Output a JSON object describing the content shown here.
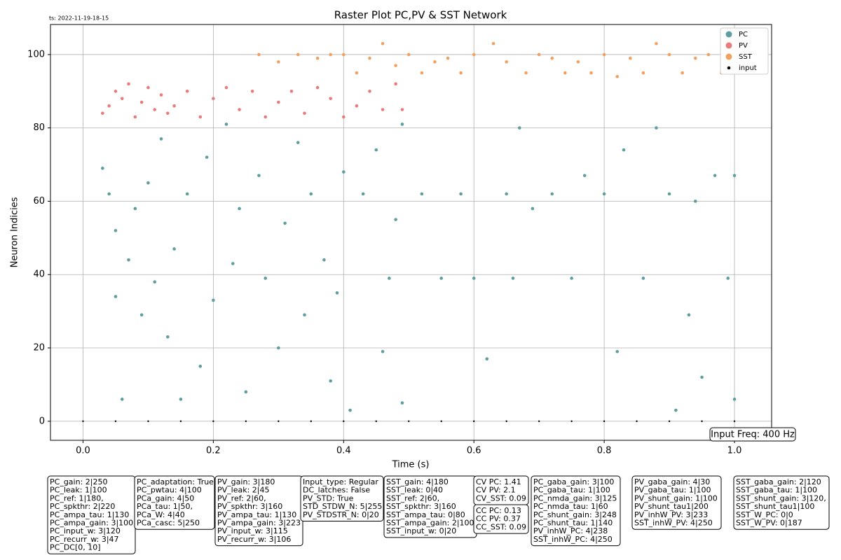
{
  "chart_data": {
    "type": "scatter",
    "title": "Raster Plot PC,PV & SST Network",
    "timestamp": "ts: 2022-11-19-18-15",
    "xlabel": "Time (s)",
    "ylabel": "Neuron Indicies",
    "annotation": "Input Freq: 400 Hz",
    "xlim": [
      -0.05,
      1.057
    ],
    "ylim": [
      -5.2,
      108.2
    ],
    "xticks": [
      {
        "value": 0,
        "label": "0.0"
      },
      0.2,
      0.4,
      0.6,
      0.8,
      {
        "value": 1,
        "label": "1.0"
      }
    ],
    "yticks": [
      0,
      20,
      40,
      60,
      80,
      100
    ],
    "grid": true,
    "legend": "upper right",
    "series": [
      {
        "name": "PC",
        "color": "#5f9ea0",
        "x": [
          0.03,
          0.04,
          0.05,
          0.05,
          0.06,
          0.07,
          0.08,
          0.09,
          0.1,
          0.11,
          0.12,
          0.13,
          0.14,
          0.15,
          0.16,
          0.18,
          0.19,
          0.2,
          0.22,
          0.23,
          0.24,
          0.25,
          0.27,
          0.28,
          0.3,
          0.31,
          0.33,
          0.34,
          0.35,
          0.37,
          0.38,
          0.39,
          0.4,
          0.41,
          0.43,
          0.45,
          0.46,
          0.47,
          0.48,
          0.49,
          0.49,
          0.52,
          0.55,
          0.58,
          0.6,
          0.62,
          0.65,
          0.66,
          0.67,
          0.69,
          0.72,
          0.75,
          0.77,
          0.8,
          0.82,
          0.83,
          0.86,
          0.88,
          0.9,
          0.91,
          0.93,
          0.94,
          0.95,
          0.97,
          0.99,
          1.0,
          1.0
        ],
        "values": [
          69,
          62,
          52,
          34,
          6,
          44,
          58,
          29,
          65,
          38,
          77,
          23,
          47,
          6,
          62,
          15,
          72,
          33,
          81,
          43,
          58,
          8,
          67,
          39,
          20,
          54,
          76,
          29,
          62,
          44,
          11,
          35,
          68,
          3,
          62,
          74,
          19,
          39,
          55,
          81,
          5,
          62,
          39,
          62,
          39,
          17,
          62,
          39,
          80,
          58,
          62,
          39,
          67,
          62,
          19,
          74,
          39,
          80,
          62,
          3,
          29,
          60,
          12,
          67,
          39,
          67,
          6
        ]
      },
      {
        "name": "PV",
        "color": "#e87b7b",
        "x": [
          0.03,
          0.04,
          0.05,
          0.06,
          0.07,
          0.08,
          0.09,
          0.1,
          0.11,
          0.12,
          0.13,
          0.14,
          0.16,
          0.18,
          0.2,
          0.22,
          0.24,
          0.26,
          0.28,
          0.3,
          0.32,
          0.34,
          0.36,
          0.38,
          0.4,
          0.42,
          0.44,
          0.46,
          0.48,
          0.49
        ],
        "values": [
          84,
          86,
          90,
          88,
          92,
          83,
          87,
          91,
          85,
          89,
          84,
          86,
          90,
          83,
          88,
          91,
          85,
          90,
          83,
          87,
          90,
          84,
          91,
          88,
          83,
          86,
          90,
          85,
          92,
          85
        ]
      },
      {
        "name": "SST",
        "color": "#f0a060",
        "x": [
          0.27,
          0.3,
          0.33,
          0.36,
          0.38,
          0.4,
          0.42,
          0.44,
          0.46,
          0.48,
          0.5,
          0.52,
          0.54,
          0.56,
          0.58,
          0.6,
          0.63,
          0.65,
          0.68,
          0.7,
          0.72,
          0.74,
          0.76,
          0.78,
          0.8,
          0.82,
          0.84,
          0.86,
          0.88,
          0.9,
          0.92,
          0.94,
          0.96,
          0.98,
          1.0
        ],
        "values": [
          100,
          98,
          100,
          99,
          100,
          100,
          95,
          99,
          103,
          97,
          100,
          95,
          98,
          99,
          95,
          100,
          103,
          98,
          95,
          100,
          99,
          95,
          98,
          95,
          100,
          94,
          99,
          95,
          103,
          100,
          95,
          99,
          100,
          95,
          100
        ]
      },
      {
        "name": "input",
        "color": "#000000",
        "x": [
          0,
          0.05,
          0.1,
          0.15,
          0.2,
          0.25,
          0.3,
          0.35,
          0.4,
          0.45,
          0.5,
          0.55,
          0.6,
          0.65,
          0.7,
          0.75,
          0.8,
          0.85,
          0.9,
          0.95,
          1.0
        ],
        "values": [
          0,
          0,
          0,
          0,
          0,
          0,
          0,
          0,
          0,
          0,
          0,
          0,
          0,
          0,
          0,
          0,
          0,
          0,
          0,
          0,
          0
        ]
      }
    ],
    "param_boxes": [
      [
        "PC_gain: 2|250",
        "PC_leak: 1|100",
        "PC_ref: 1|180,",
        "PC_spkthr: 2|220",
        "PC_ampa_tau: 1|130",
        "PC_ampa_gain: 3|100",
        "PC_input_w: 3|120",
        "PC_recurr_w: 3|47",
        "PC_DC[0, 10]"
      ],
      [
        "PC_adaptation: True",
        "PC_pwtau: 4|100",
        "PCa_gain: 4|50",
        "PCa_tau: 1|50,",
        "PCa_W: 4|40",
        "PCa_casc: 5|250"
      ],
      [
        "PV_gain: 3|180",
        "PV_leak: 2|45",
        "PV_ref: 2|60,",
        "PV_spkthr: 3|160",
        "PV_ampa_tau: 1|130",
        "PV_ampa_gain: 3|223",
        "PV_input_w: 3|115",
        "PV_recurr_w: 3|106"
      ],
      [
        "Input_type: Regular",
        "DC_latches: False",
        "PV_STD: True",
        "STD_STDW_N: 5|255",
        "PV_STDSTR_N: 0|20"
      ],
      [
        "SST_gain: 4|180",
        "SST_leak: 0|40",
        "SST_ref: 2|60,",
        "SST_spkthr: 3|160",
        "SST_ampa_tau: 0|80",
        "SST_ampa_gain: 2|100",
        "SST_input_w: 0|20"
      ],
      [
        "CV PC: 1.41",
        "CV PV: 2.1",
        "CV_SST: 0.09"
      ],
      [
        "CC PC: 0.13",
        "CC PV: 0.37",
        "CC_SST: 0.09"
      ],
      [
        "PC_gaba_gain: 3|100",
        "PC_gaba_tau: 1|100",
        "PC_nmda_gain: 3|125",
        "PC_nmda_tau: 1|60",
        "PC_shunt_gain: 3|248",
        "PC_shunt_tau: 1|140",
        "PV_inhW_PC: 4|238",
        "SST_inhW_PC: 4|250"
      ],
      [
        "PV_gaba_gain: 4|30",
        "PV_gaba_tau: 1|100",
        "PV_shunt_gain: 1|100",
        "PV_shunt_tau1|200",
        "PV_inhW_PV: 3|233",
        "SST_inhW_PV: 4|250"
      ],
      [
        "SST_gaba_gain: 2|120",
        "SST_gaba_tau: 1|100",
        "SST_shunt_gain: 3|120,",
        "SST_shunt_tau1|100",
        "SST_W_PC: 0|0",
        "SST_W_PV: 0|187"
      ]
    ]
  }
}
